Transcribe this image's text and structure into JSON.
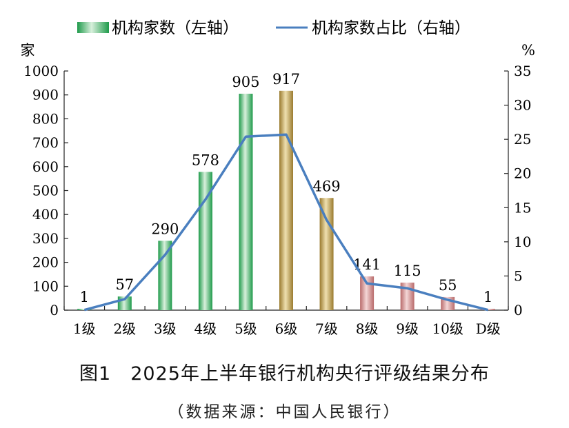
{
  "chart_data": {
    "type": "bar",
    "categories": [
      "1级",
      "2级",
      "3级",
      "4级",
      "5级",
      "6级",
      "7级",
      "8级",
      "9级",
      "10级",
      "D级"
    ],
    "series": [
      {
        "name": "机构家数（左轴）",
        "type": "bar",
        "axis": "left",
        "values": [
          1,
          57,
          290,
          578,
          905,
          917,
          469,
          141,
          115,
          55,
          1
        ]
      },
      {
        "name": "机构家数占比（右轴）",
        "type": "line",
        "axis": "right",
        "values": [
          0.03,
          1.6,
          8.1,
          16.2,
          25.4,
          25.7,
          13.2,
          3.9,
          3.2,
          1.5,
          0.03
        ]
      }
    ],
    "bar_labels": [
      "1",
      "57",
      "290",
      "578",
      "905",
      "917",
      "469",
      "141",
      "115",
      "55",
      "1"
    ],
    "ylabel": "家",
    "y2label": "%",
    "ylim": [
      0,
      1000
    ],
    "y2lim": [
      0,
      35
    ],
    "yticks": [
      "0",
      "100",
      "200",
      "300",
      "400",
      "500",
      "600",
      "700",
      "800",
      "900",
      "1000"
    ],
    "y2ticks": [
      "0",
      "5",
      "10",
      "15",
      "20",
      "25",
      "30",
      "35"
    ],
    "legend_position": "top",
    "colors": {
      "green_dark": "#1e9a4a",
      "green_light": "#d8f0dc",
      "gold_dark": "#9a7a2e",
      "gold_light": "#efe0b0",
      "red_dark": "#b86a6a",
      "red_light": "#f4d6d6",
      "line": "#4a7fbf"
    },
    "title": "图1　2025年上半年银行机构央行评级结果分布",
    "source": "（数据来源：中国人民银行）"
  }
}
